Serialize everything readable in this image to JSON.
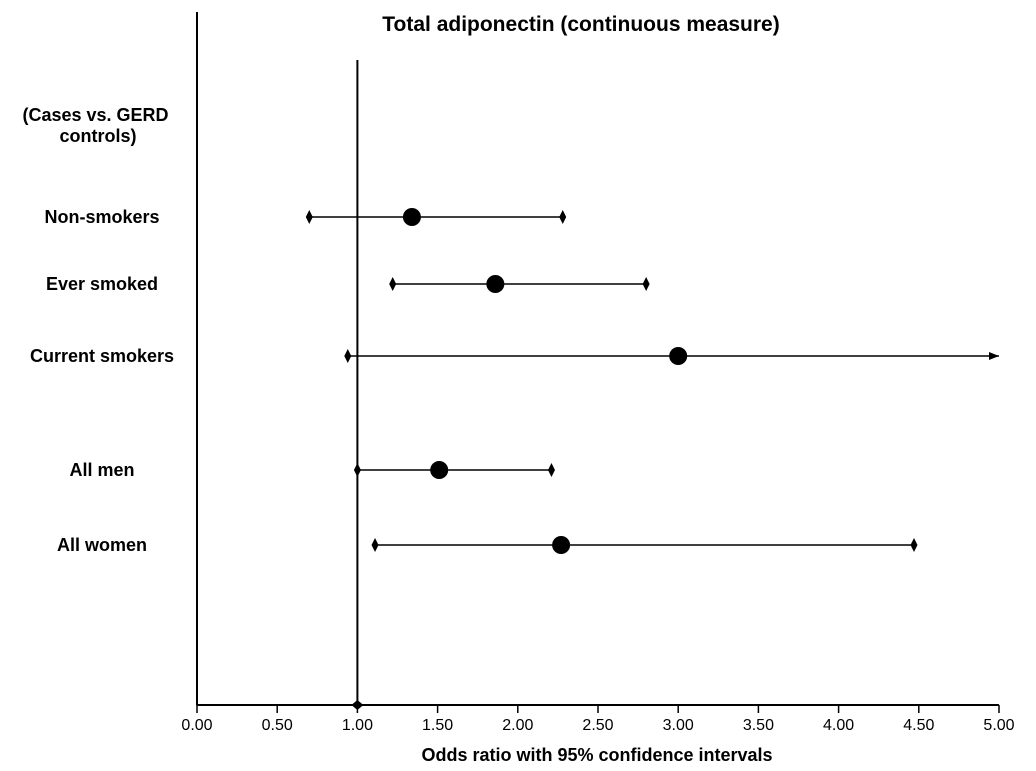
{
  "chart_data": {
    "type": "forest",
    "title": "Total adiponectin (continuous measure)",
    "xlabel": "Odds ratio with 95% confidence intervals",
    "xlim": [
      0,
      5
    ],
    "xticks": [
      "0.00",
      "0.50",
      "1.00",
      "1.50",
      "2.00",
      "2.50",
      "3.00",
      "3.50",
      "4.00",
      "4.50",
      "5.00"
    ],
    "reference_line": 1.0,
    "group_header": "(Cases vs. GERD controls)",
    "rows": [
      {
        "label": "Non-smokers",
        "or": 1.34,
        "lower": 0.7,
        "upper": 2.28,
        "upper_truncated": false
      },
      {
        "label": "Ever smoked",
        "or": 1.86,
        "lower": 1.22,
        "upper": 2.8,
        "upper_truncated": false
      },
      {
        "label": "Current smokers",
        "or": 3.0,
        "lower": 0.94,
        "upper": 5.0,
        "upper_truncated": true
      },
      {
        "label": "All men",
        "or": 1.51,
        "lower": 1.0,
        "upper": 2.21,
        "upper_truncated": false
      },
      {
        "label": "All women",
        "or": 2.27,
        "lower": 1.11,
        "upper": 4.47,
        "upper_truncated": false
      }
    ],
    "grid": false
  }
}
